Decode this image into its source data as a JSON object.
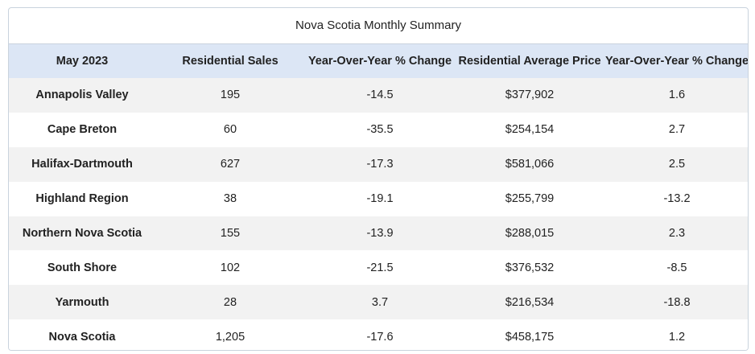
{
  "title": "Nova Scotia Monthly Summary",
  "headers": [
    "May 2023",
    "Residential Sales",
    "Year-Over-Year % Change",
    "Residential Average Price",
    "Year-Over-Year % Change"
  ],
  "rows": [
    [
      "Annapolis Valley",
      "195",
      "-14.5",
      "$377,902",
      "1.6"
    ],
    [
      "Cape Breton",
      "60",
      "-35.5",
      "$254,154",
      "2.7"
    ],
    [
      "Halifax-Dartmouth",
      "627",
      "-17.3",
      "$581,066",
      "2.5"
    ],
    [
      "Highland Region",
      "38",
      "-19.1",
      "$255,799",
      "-13.2"
    ],
    [
      "Northern Nova Scotia",
      "155",
      "-13.9",
      "$288,015",
      "2.3"
    ],
    [
      "South Shore",
      "102",
      "-21.5",
      "$376,532",
      "-8.5"
    ],
    [
      "Yarmouth",
      "28",
      "3.7",
      "$216,534",
      "-18.8"
    ],
    [
      "Nova Scotia",
      "1,205",
      "-17.6",
      "$458,175",
      "1.2"
    ]
  ],
  "colors": {
    "header_bg": "#dce6f5",
    "stripe_bg": "#f2f2f2",
    "border": "#c9d3dd"
  }
}
